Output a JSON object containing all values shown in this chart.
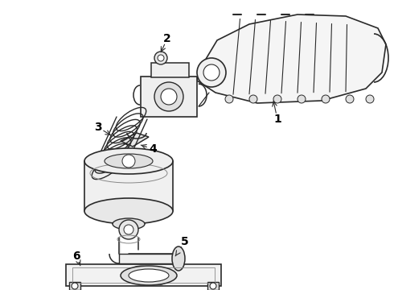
{
  "bg_color": "#ffffff",
  "line_color": "#2a2a2a",
  "label_color": "#000000",
  "figsize": [
    4.9,
    3.6
  ],
  "dpi": 100,
  "xlim": [
    0,
    490
  ],
  "ylim": [
    0,
    360
  ]
}
